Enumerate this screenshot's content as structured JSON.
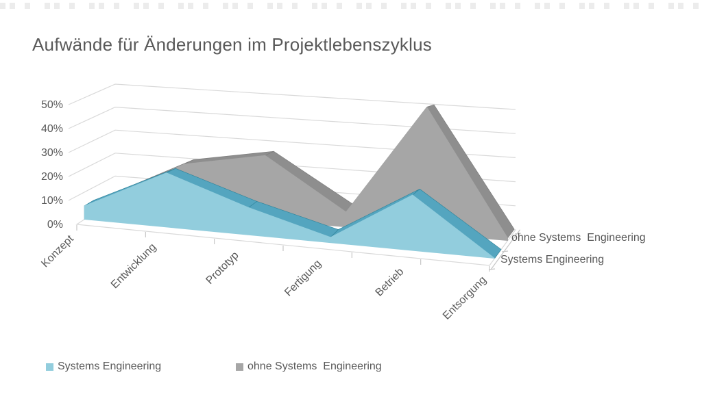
{
  "chart_data": {
    "type": "area",
    "projection": "3d",
    "title": "Aufwände für Änderungen im Projektlebenszyklus",
    "categories": [
      "Konzept",
      "Entwicklung",
      "Prototyp",
      "Fertigung",
      "Betrieb",
      "Entsorgung"
    ],
    "series": [
      {
        "name": "Systems Engineering",
        "values": [
          5,
          20,
          10,
          2,
          20,
          0
        ],
        "unit": "%",
        "color": "#92CDDD",
        "color_top": "#54A5BF",
        "color_side": "#31859C"
      },
      {
        "name": "ohne Systems  Engineering",
        "values": [
          3,
          20,
          26,
          6,
          50,
          1
        ],
        "unit": "%",
        "color": "#A6A6A6",
        "color_top": "#8E8E8E",
        "color_side": "#7D7D7D"
      }
    ],
    "y_axis": {
      "tick_labels": [
        "0%",
        "10%",
        "20%",
        "30%",
        "40%",
        "50%"
      ],
      "min": 0,
      "max": 50,
      "unit": "%"
    },
    "depth_axis_rows_front_to_back": [
      "Systems Engineering",
      "ohne Systems  Engineering"
    ],
    "grid": true,
    "legend_position": "bottom",
    "colors": {
      "text": "#595959",
      "grid": "#D9D9D9",
      "axis": "#C6C6C6",
      "wall": "#FFFFFF"
    }
  }
}
